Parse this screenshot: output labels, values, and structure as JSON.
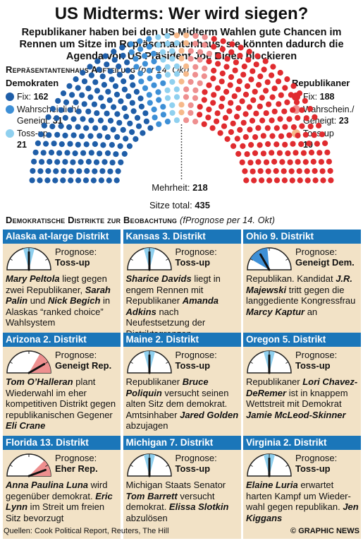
{
  "title": "US Midterms: Wer wird siegen?",
  "subtitle": "Republikaner haben bei den US Midterm Wahlen gute Chancen im Rennen um Sitze im Repräsentantenhaus, sie könnten dadurch die Agenda von US Präsident Joe Biden blockieren",
  "house_section": {
    "heading": "Repräsentantenhaus Aufteilung",
    "heading_note": "(per 14. Okt)"
  },
  "democrats_legend": {
    "title": "Demokraten",
    "items": [
      {
        "label": "Fix:",
        "value": "162",
        "color": "#1f5ea8"
      },
      {
        "label": "Wahrscheinlich/ Geneigt:",
        "value": "31",
        "color": "#3d8fd6"
      },
      {
        "label": "Toss-up",
        "value": "21",
        "color": "#8fd0ef"
      }
    ]
  },
  "republicans_legend": {
    "title": "Republikaner",
    "items": [
      {
        "label": "Fix:",
        "value": "188",
        "color": "#e02b2f"
      },
      {
        "label": "Wahrschein./ Geneigt:",
        "value": "23",
        "color": "#ee8f8f"
      },
      {
        "label": "Toss-up",
        "value": "10",
        "color": "#f6b98a"
      }
    ]
  },
  "majority": {
    "label": "Mehrheit:",
    "value": "218"
  },
  "total": {
    "label": "Sitze total:",
    "value": "435"
  },
  "chart_data": {
    "type": "parliament",
    "total_seats": 435,
    "majority": 218,
    "series": [
      {
        "name": "Fix",
        "party": "Demokraten",
        "value": 162,
        "color": "#1f5ea8"
      },
      {
        "name": "Wahrscheinlich/ Geneigt",
        "party": "Demokraten",
        "value": 31,
        "color": "#3d8fd6"
      },
      {
        "name": "Toss-up",
        "party": "Demokraten",
        "value": 21,
        "color": "#8fd0ef"
      },
      {
        "name": "Toss-up",
        "party": "Republikaner",
        "value": 10,
        "color": "#f6b98a"
      },
      {
        "name": "Wahrschein./ Geneigt",
        "party": "Republikaner",
        "value": 23,
        "color": "#ee8f8f"
      },
      {
        "name": "Fix",
        "party": "Republikaner",
        "value": 188,
        "color": "#e02b2f"
      }
    ]
  },
  "districts_section": {
    "heading": "Demokratische Distrikte zur Beobachtung",
    "heading_note": "(fPrognose per 14. Okt)"
  },
  "districts": [
    {
      "name": "Alaska at-large Distrikt",
      "prognose_label": "Prognose:",
      "prognose": "Toss-up",
      "lean": 0,
      "desc": [
        {
          "t": "Mary Peltola",
          "b": true
        },
        {
          "t": " liegt gegen zwei Republikaner, "
        },
        {
          "t": "Sarah Palin",
          "b": true
        },
        {
          "t": " und "
        },
        {
          "t": "Nick Begich",
          "b": true
        },
        {
          "t": " in Alaskas “ranked choice” Wahlsystem"
        }
      ]
    },
    {
      "name": "Kansas 3. Distrikt",
      "prognose_label": "Prognose:",
      "prognose": "Toss-up",
      "lean": 0,
      "desc": [
        {
          "t": "Sharice Davids",
          "b": true
        },
        {
          "t": " liegt in engem Rennen mit Republikaner "
        },
        {
          "t": "Amanda Adkins",
          "b": true
        },
        {
          "t": " nach Neufestsetzung der Distriktsgrenzen"
        }
      ]
    },
    {
      "name": "Ohio 9. Distrikt",
      "prognose_label": "Prognose:",
      "prognose": "Geneigt Dem.",
      "lean": -1,
      "desc": [
        {
          "t": "Republikan. Kandidat "
        },
        {
          "t": "J.R. Majewski",
          "b": true
        },
        {
          "t": " tritt gegen die langgediente Kongressfrau "
        },
        {
          "t": "Marcy Kaptur",
          "b": true
        },
        {
          "t": " an"
        }
      ]
    },
    {
      "name": "Arizona 2. Distrikt",
      "prognose_label": "Prognose:",
      "prognose": "Geneigt Rep.",
      "lean": 1,
      "desc": [
        {
          "t": "Tom O’Halleran",
          "b": true
        },
        {
          "t": " plant Wiederwahl im eher kompetitiven Distrikt gegen republikanischen Gegener "
        },
        {
          "t": "Eli Crane",
          "b": true
        }
      ]
    },
    {
      "name": "Maine 2. Distrikt",
      "prognose_label": "Prognose:",
      "prognose": "Toss-up",
      "lean": 0,
      "desc": [
        {
          "t": "Republikaner "
        },
        {
          "t": "Bruce Poliquin",
          "b": true
        },
        {
          "t": " versucht seinen alten Sitz dem demokrat. Amtsinhaber "
        },
        {
          "t": "Jared Golden",
          "b": true
        },
        {
          "t": " abzujagen"
        }
      ]
    },
    {
      "name": "Oregon 5. Distrikt",
      "prognose_label": "Prognose:",
      "prognose": "Toss-up",
      "lean": 0,
      "desc": [
        {
          "t": "Republikaner "
        },
        {
          "t": "Lori Chavez-DeRemer",
          "b": true
        },
        {
          "t": " ist in knappem Wettstreit mit Demokrat "
        },
        {
          "t": "Jamie McLeod-Skinner",
          "b": true
        }
      ]
    },
    {
      "name": "Florida 13. Distrikt",
      "prognose_label": "Prognose:",
      "prognose": "Eher Rep.",
      "lean": 2,
      "desc": [
        {
          "t": "Anna Paulina Luna",
          "b": true
        },
        {
          "t": " wird gegenüber demokrat. "
        },
        {
          "t": "Eric Lynn",
          "b": true
        },
        {
          "t": " im Streit um freien Sitz bevorzugt"
        }
      ]
    },
    {
      "name": "Michigan 7. Distrikt",
      "prognose_label": "Prognose:",
      "prognose": "Toss-up",
      "lean": 0,
      "desc": [
        {
          "t": "Michigan Staats Senator "
        },
        {
          "t": "Tom Barrett",
          "b": true
        },
        {
          "t": " versucht demokrat. "
        },
        {
          "t": "Elissa Slotkin",
          "b": true
        },
        {
          "t": " abzulösen"
        }
      ]
    },
    {
      "name": "Virginia 2. Distrikt",
      "prognose_label": "Prognose:",
      "prognose": "Toss-up",
      "lean": 0,
      "desc": [
        {
          "t": "Elaine Luria",
          "b": true
        },
        {
          "t": " erwartet harten Kampf um Wieder-wahl gegen republikan. "
        },
        {
          "t": "Jen Kiggans",
          "b": true
        }
      ]
    }
  ],
  "source": "Quellen: Cook Political Report, Reuters, The Hill",
  "brand": "© GRAPHIC NEWS"
}
